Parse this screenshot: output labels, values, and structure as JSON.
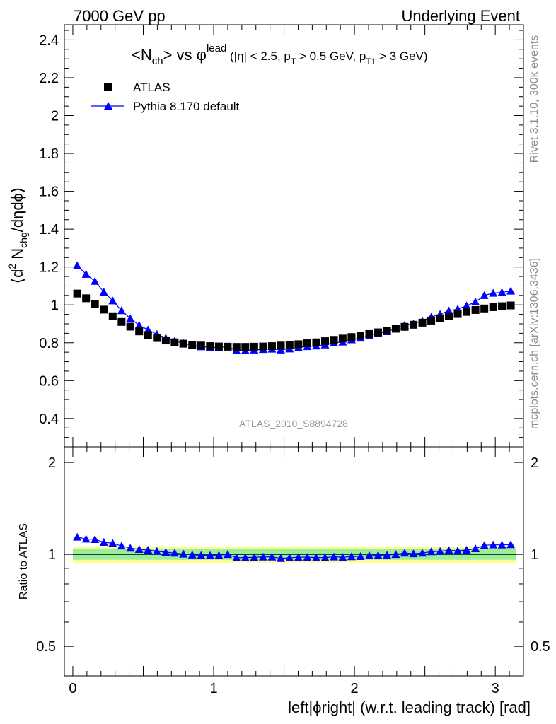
{
  "header": {
    "left": "7000 GeV pp",
    "right": "Underlying Event"
  },
  "side_labels": {
    "rivet": "Rivet 3.1.10,  300k events",
    "mcplots": "mcplots.cern.ch [arXiv:1306.3436]"
  },
  "chart_data": {
    "type": "scatter",
    "title": {
      "main": "<N",
      "main_sub": "ch",
      "vs": "> vs ",
      "phi": "φ",
      "lead": "lead",
      "cut1": " (|η| < 2.5, p",
      "sub_T": "T",
      "cut2": " > 0.5 GeV, p",
      "sub_T1": "T1",
      "cut3": " > 3 GeV)"
    },
    "ylabel": {
      "open": "⟨d",
      "sup": "2",
      "mid": " N",
      "sub": "chg",
      "close": "/dηdϕ⟩"
    },
    "ratio_ylabel": "Ratio to ATLAS",
    "xlabel": "left|ϕright| (w.r.t. leading track) [rad]",
    "watermark": "ATLAS_2010_S8894728",
    "xlim": [
      -0.06,
      3.2
    ],
    "ylim": [
      0.25,
      2.48
    ],
    "ratio_ylim": [
      0.4,
      2.25
    ],
    "ratio_scale": "log",
    "x_ticks": [
      "0",
      "1",
      "2",
      "3"
    ],
    "y_ticks": [
      "0.4",
      "0.6",
      "0.8",
      "1",
      "1.2",
      "1.4",
      "1.6",
      "1.8",
      "2",
      "2.2",
      "2.4"
    ],
    "ratio_ticks": [
      "0.5",
      "1",
      "2"
    ],
    "grid": false,
    "legend_position": "top-left",
    "x": [
      0.031,
      0.094,
      0.157,
      0.22,
      0.283,
      0.346,
      0.408,
      0.471,
      0.534,
      0.597,
      0.66,
      0.723,
      0.785,
      0.848,
      0.911,
      0.974,
      1.037,
      1.1,
      1.162,
      1.225,
      1.288,
      1.351,
      1.414,
      1.477,
      1.539,
      1.602,
      1.665,
      1.728,
      1.791,
      1.854,
      1.916,
      1.979,
      2.042,
      2.105,
      2.168,
      2.231,
      2.293,
      2.356,
      2.419,
      2.482,
      2.545,
      2.608,
      2.67,
      2.733,
      2.796,
      2.859,
      2.922,
      2.985,
      3.047,
      3.11
    ],
    "series": [
      {
        "name": "ATLAS",
        "color": "#000000",
        "marker": "square",
        "values": [
          1.06,
          1.035,
          1.005,
          0.975,
          0.94,
          0.91,
          0.885,
          0.86,
          0.84,
          0.825,
          0.812,
          0.802,
          0.795,
          0.789,
          0.785,
          0.782,
          0.78,
          0.779,
          0.778,
          0.778,
          0.779,
          0.78,
          0.782,
          0.785,
          0.788,
          0.792,
          0.797,
          0.802,
          0.808,
          0.815,
          0.822,
          0.83,
          0.838,
          0.846,
          0.855,
          0.864,
          0.874,
          0.884,
          0.895,
          0.906,
          0.917,
          0.929,
          0.94,
          0.952,
          0.963,
          0.973,
          0.981,
          0.988,
          0.993,
          0.997
        ]
      },
      {
        "name": "Pythia 8.170 default",
        "color": "#0000ff",
        "marker": "triangle",
        "values": [
          1.208,
          1.162,
          1.125,
          1.068,
          1.022,
          0.97,
          0.928,
          0.893,
          0.868,
          0.845,
          0.825,
          0.81,
          0.797,
          0.786,
          0.779,
          0.776,
          0.775,
          0.779,
          0.759,
          0.759,
          0.762,
          0.765,
          0.767,
          0.762,
          0.768,
          0.775,
          0.78,
          0.783,
          0.789,
          0.8,
          0.804,
          0.816,
          0.825,
          0.838,
          0.849,
          0.859,
          0.874,
          0.893,
          0.9,
          0.915,
          0.936,
          0.951,
          0.969,
          0.978,
          0.995,
          1.016,
          1.05,
          1.062,
          1.066,
          1.073
        ]
      }
    ],
    "ratio_band": {
      "inner": [
        0.96,
        1.04
      ],
      "outer": [
        0.94,
        1.06
      ]
    }
  }
}
